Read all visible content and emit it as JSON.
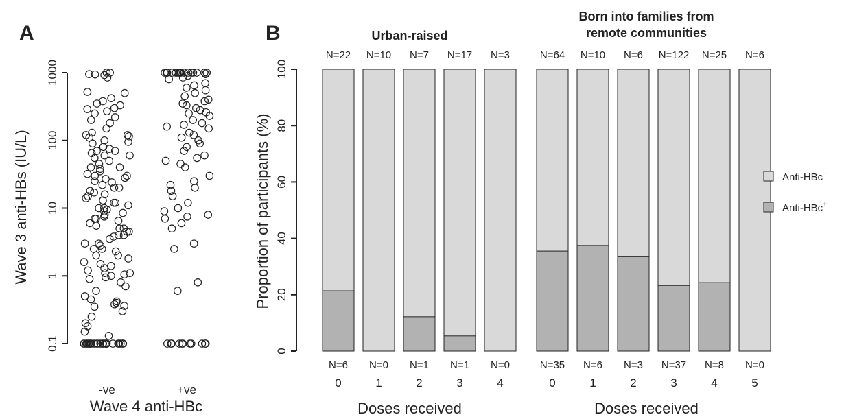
{
  "colors": {
    "neg": "#d9d9d9",
    "pos": "#b2b2b2",
    "stroke": "#222222",
    "point": "#222222"
  },
  "chart_data": [
    {
      "panel": "A",
      "type": "scatter",
      "scale_y": "log",
      "ylabel": "Wave 3 anti-HBs (IU/L)",
      "xlabel": "Wave 4 anti-HBc",
      "categories": [
        "-ve",
        "+ve"
      ],
      "yticks": [
        {
          "v": 0.1,
          "label": "0.1"
        },
        {
          "v": 1,
          "label": "1"
        },
        {
          "v": 10,
          "label": "10"
        },
        {
          "v": 100,
          "label": "100"
        },
        {
          "v": 1000,
          "label": "1000"
        }
      ],
      "ylim": [
        0.1,
        1000
      ],
      "series": [
        {
          "category": "-ve",
          "values": [
            1000,
            1000,
            950,
            940,
            920,
            850,
            520,
            500,
            420,
            380,
            350,
            330,
            300,
            290,
            270,
            250,
            220,
            200,
            180,
            150,
            130,
            120,
            120,
            115,
            110,
            100,
            95,
            90,
            80,
            75,
            70,
            70,
            65,
            60,
            60,
            55,
            50,
            45,
            40,
            40,
            38,
            35,
            32,
            30,
            30,
            28,
            27,
            25,
            24,
            22,
            20,
            20,
            18,
            17,
            16,
            15,
            14,
            13,
            12,
            12,
            11,
            10,
            10,
            9.5,
            9,
            8.5,
            8,
            7.5,
            7,
            7,
            6.5,
            6,
            5.5,
            5,
            5,
            4.5,
            4.5,
            4,
            4,
            3.8,
            3.5,
            3,
            3,
            2.8,
            2.5,
            2.5,
            2.3,
            2,
            2,
            1.8,
            1.6,
            1.5,
            1.4,
            1.3,
            1.2,
            1.1,
            1.1,
            1.05,
            1,
            0.95,
            0.9,
            0.8,
            0.7,
            0.6,
            0.5,
            0.45,
            0.42,
            0.4,
            0.38,
            0.36,
            0.35,
            0.3,
            0.25,
            0.2,
            0.18,
            0.15,
            0.13,
            0.1,
            0.1,
            0.1,
            0.1,
            0.1,
            0.1,
            0.1,
            0.1,
            0.1,
            0.1,
            0.1,
            0.1,
            0.1,
            0.1,
            0.1,
            0.1,
            0.1,
            0.1,
            0.1,
            0.1,
            0.1,
            0.1,
            0.1,
            0.1,
            0.1
          ]
        },
        {
          "category": "+ve",
          "values": [
            1000,
            1000,
            1000,
            1000,
            1000,
            1000,
            1000,
            1000,
            1000,
            1000,
            1000,
            1000,
            1000,
            1000,
            1000,
            1000,
            1000,
            950,
            900,
            850,
            800,
            700,
            650,
            600,
            550,
            500,
            450,
            400,
            380,
            350,
            330,
            300,
            280,
            260,
            250,
            230,
            200,
            180,
            170,
            160,
            150,
            130,
            120,
            110,
            100,
            90,
            80,
            70,
            60,
            55,
            50,
            45,
            40,
            30,
            25,
            22,
            20,
            18,
            15,
            12,
            10,
            9,
            8,
            7.5,
            7,
            6,
            5,
            3,
            2.5,
            0.8,
            0.6,
            0.1,
            0.1,
            0.1,
            0.1,
            0.1,
            0.1,
            0.1,
            0.1,
            0.1,
            0.1,
            0.1
          ]
        }
      ]
    },
    {
      "panel": "B",
      "type": "bar",
      "stacked": true,
      "ylabel": "Proportion of participants (%)",
      "ylim": [
        0,
        100
      ],
      "yticks": [
        0,
        20,
        40,
        60,
        80,
        100
      ],
      "legend": [
        {
          "key": "neg",
          "label": "Anti-HBc",
          "sup": "−"
        },
        {
          "key": "pos",
          "label": "Anti-HBc",
          "sup": "+"
        }
      ],
      "groups": [
        {
          "title_lines": [
            "Urban-raised"
          ],
          "xlabel": "Doses received",
          "categories": [
            "0",
            "1",
            "2",
            "3",
            "4"
          ],
          "totals": [
            "N=22",
            "N=10",
            "N=7",
            "N=17",
            "N=3"
          ],
          "positives": [
            "N=6",
            "N=0",
            "N=1",
            "N=1",
            "N=0"
          ],
          "positive_pct": [
            21.4,
            0,
            12.2,
            5.4,
            0
          ]
        },
        {
          "title_lines": [
            "Born into families from",
            "remote communities"
          ],
          "xlabel": "Doses received",
          "categories": [
            "0",
            "1",
            "2",
            "3",
            "4",
            "5"
          ],
          "totals": [
            "N=64",
            "N=10",
            "N=6",
            "N=122",
            "N=25",
            "N=6"
          ],
          "positives": [
            "N=35",
            "N=6",
            "N=3",
            "N=37",
            "N=8",
            "N=0"
          ],
          "positive_pct": [
            35.5,
            37.5,
            33.5,
            23.3,
            24.3,
            0
          ]
        }
      ]
    }
  ]
}
